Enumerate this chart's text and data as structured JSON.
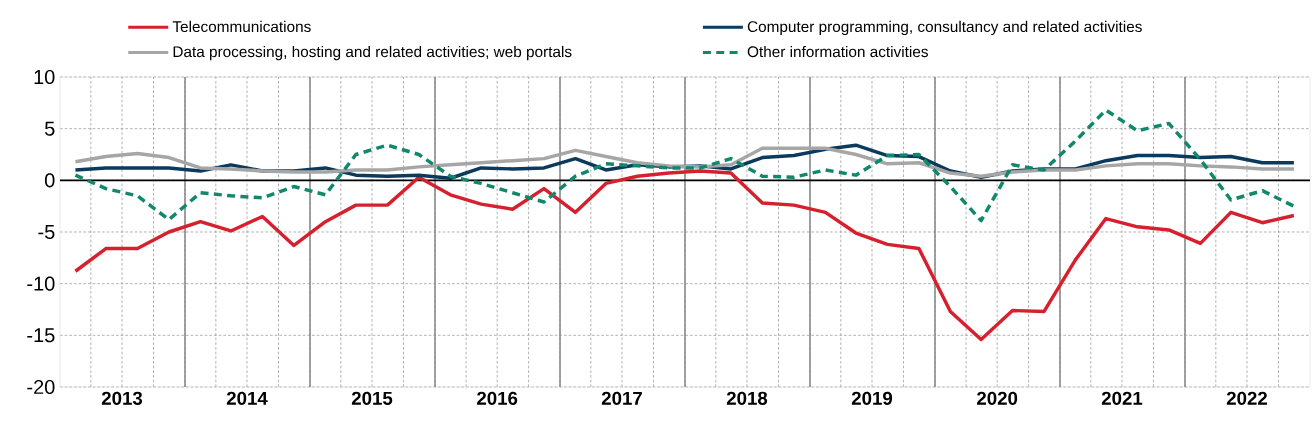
{
  "chart_data": {
    "type": "line",
    "x": [
      "2013-02-15",
      "2013-05-15",
      "2013-08-15",
      "2013-11-15",
      "2014-02-15",
      "2014-05-15",
      "2014-08-15",
      "2014-11-15",
      "2015-02-15",
      "2015-05-15",
      "2015-08-15",
      "2015-11-15",
      "2016-02-15",
      "2016-05-15",
      "2016-08-15",
      "2016-11-15",
      "2017-02-15",
      "2017-05-15",
      "2017-08-15",
      "2017-11-15",
      "2018-02-15",
      "2018-05-15",
      "2018-08-15",
      "2018-11-15",
      "2019-02-15",
      "2019-05-15",
      "2019-08-15",
      "2019-11-15",
      "2020-02-15",
      "2020-05-15",
      "2020-08-15",
      "2020-11-15",
      "2021-02-15",
      "2021-05-15",
      "2021-08-15",
      "2021-11-15",
      "2022-02-15",
      "2022-05-15",
      "2022-08-15",
      "2022-11-15"
    ],
    "xlim": [
      "2013-01-01",
      "2023-01-01"
    ],
    "xticks": [
      {
        "value": "2013-04-01",
        "label": null
      },
      {
        "value": "2013-07-01",
        "label": "2013"
      },
      {
        "value": "2013-10-01",
        "label": null
      },
      {
        "value": "2014-01-01",
        "label": null
      },
      {
        "value": "2014-04-01",
        "label": null
      },
      {
        "value": "2014-07-01",
        "label": "2014"
      },
      {
        "value": "2014-10-01",
        "label": null
      },
      {
        "value": "2015-01-01",
        "label": null
      },
      {
        "value": "2015-04-01",
        "label": null
      },
      {
        "value": "2015-07-01",
        "label": "2015"
      },
      {
        "value": "2015-10-01",
        "label": null
      },
      {
        "value": "2016-01-01",
        "label": null
      },
      {
        "value": "2016-04-01",
        "label": null
      },
      {
        "value": "2016-07-01",
        "label": "2016"
      },
      {
        "value": "2016-10-01",
        "label": null
      },
      {
        "value": "2017-01-01",
        "label": null
      },
      {
        "value": "2017-04-01",
        "label": null
      },
      {
        "value": "2017-07-01",
        "label": "2017"
      },
      {
        "value": "2017-10-01",
        "label": null
      },
      {
        "value": "2018-01-01",
        "label": null
      },
      {
        "value": "2018-04-01",
        "label": null
      },
      {
        "value": "2018-07-01",
        "label": "2018"
      },
      {
        "value": "2018-10-01",
        "label": null
      },
      {
        "value": "2019-01-01",
        "label": null
      },
      {
        "value": "2019-04-01",
        "label": null
      },
      {
        "value": "2019-07-01",
        "label": "2019"
      },
      {
        "value": "2019-10-01",
        "label": null
      },
      {
        "value": "2020-01-01",
        "label": null
      },
      {
        "value": "2020-04-01",
        "label": null
      },
      {
        "value": "2020-07-01",
        "label": "2020"
      },
      {
        "value": "2020-10-01",
        "label": null
      },
      {
        "value": "2021-01-01",
        "label": null
      },
      {
        "value": "2021-04-01",
        "label": null
      },
      {
        "value": "2021-07-01",
        "label": "2021"
      },
      {
        "value": "2021-10-01",
        "label": null
      },
      {
        "value": "2022-01-01",
        "label": null
      },
      {
        "value": "2022-04-01",
        "label": null
      },
      {
        "value": "2022-07-01",
        "label": "2022"
      },
      {
        "value": "2022-10-01",
        "label": null
      }
    ],
    "ylim": [
      -20,
      10
    ],
    "yticks": [
      -20,
      -15,
      -10,
      -5,
      0,
      5,
      10
    ],
    "grid": true,
    "legend": "top",
    "ref_lines": [
      {
        "axis": "y",
        "value": 0,
        "color": "#000000"
      }
    ],
    "series": [
      {
        "name": "Telecommunications",
        "color": "#d7202e",
        "values": [
          -8.8,
          -6.6,
          -6.6,
          -5.0,
          -4.0,
          -4.9,
          -3.5,
          -6.3,
          -4.0,
          -2.4,
          -2.4,
          0.3,
          -1.4,
          -2.3,
          -2.8,
          -0.8,
          -3.1,
          -0.3,
          0.4,
          0.7,
          0.9,
          0.7,
          -2.2,
          -2.4,
          -3.1,
          -5.1,
          -6.2,
          -6.6,
          -12.7,
          -15.4,
          -12.6,
          -12.7,
          -7.7,
          -3.7,
          -4.5,
          -4.8,
          -6.1,
          -3.1,
          -4.1,
          -3.4
        ]
      },
      {
        "name": "Computer programming, consultancy and related activities",
        "color": "#0b3a5c",
        "values": [
          1.0,
          1.2,
          1.2,
          1.2,
          0.9,
          1.5,
          0.9,
          0.9,
          1.2,
          0.5,
          0.4,
          0.5,
          0.2,
          1.2,
          1.1,
          1.2,
          2.1,
          1.0,
          1.5,
          1.3,
          1.4,
          1.1,
          2.2,
          2.4,
          3.0,
          3.4,
          2.4,
          2.3,
          0.9,
          0.3,
          0.9,
          1.1,
          1.1,
          1.9,
          2.4,
          2.4,
          2.2,
          2.3,
          1.7,
          1.7
        ]
      },
      {
        "name": "Data processing, hosting and related activities; web portals",
        "color": "#a6a6a6",
        "values": [
          1.8,
          2.3,
          2.6,
          2.2,
          1.2,
          1.1,
          0.9,
          0.8,
          0.8,
          1.0,
          1.0,
          1.3,
          1.5,
          1.7,
          1.9,
          2.1,
          2.9,
          2.3,
          1.7,
          1.4,
          1.3,
          1.5,
          3.1,
          3.1,
          3.1,
          2.5,
          1.6,
          1.7,
          0.7,
          0.4,
          0.8,
          1.0,
          1.0,
          1.4,
          1.6,
          1.6,
          1.4,
          1.3,
          1.1,
          1.1
        ]
      },
      {
        "name": "Other information activities",
        "color": "#11876b",
        "line_style": "dashed",
        "values": [
          0.5,
          -0.8,
          -1.5,
          -3.8,
          -1.2,
          -1.5,
          -1.7,
          -0.6,
          -1.4,
          2.5,
          3.4,
          2.5,
          0.4,
          -0.3,
          -1.2,
          -2.1,
          0.4,
          1.6,
          1.4,
          1.2,
          1.2,
          2.1,
          0.4,
          0.3,
          1.0,
          0.5,
          2.4,
          2.5,
          -0.6,
          -3.9,
          1.5,
          1.0,
          3.8,
          6.8,
          4.8,
          5.5,
          2.0,
          -1.9,
          -1.0,
          -2.5
        ]
      }
    ]
  }
}
